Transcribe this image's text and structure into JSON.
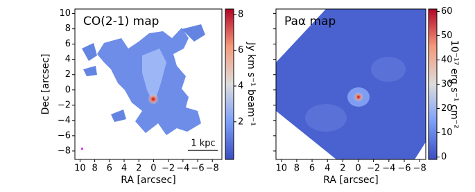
{
  "chart_data": [
    {
      "type": "image",
      "title": "CO(2-1) map",
      "xlabel": "RA [arcsec]",
      "ylabel": "Dec [arcsec]",
      "xlim": [
        10.7,
        -9.3
      ],
      "ylim": [
        -9.1,
        10.6
      ],
      "xticks": [
        10,
        8,
        6,
        4,
        2,
        0,
        {
          "value": -2,
          "label": "−2"
        },
        {
          "value": -4,
          "label": "−4"
        },
        {
          "value": -6,
          "label": "−6"
        },
        {
          "value": -8,
          "label": "−8"
        }
      ],
      "yticks": [
        {
          "value": -8,
          "label": "−8"
        },
        {
          "value": -6,
          "label": "−6"
        },
        {
          "value": -4,
          "label": "−4"
        },
        {
          "value": -2,
          "label": "−2"
        },
        0,
        2,
        4,
        6,
        8,
        10
      ],
      "show_ytick_labels": true,
      "colormap": "coolwarm",
      "colorbar_label": "Jy km s⁻¹ beam⁻¹",
      "clim": [
        -0.1,
        8.3
      ],
      "cticks": [
        2,
        4,
        6,
        8
      ],
      "annotation": "1 kpc"
    },
    {
      "type": "image",
      "title": "Paα map",
      "xlabel": "RA [arcsec]",
      "xlim": [
        10.7,
        -8.8
      ],
      "ylim": [
        -9.1,
        10.6
      ],
      "xticks": [
        10,
        8,
        6,
        4,
        2,
        0,
        {
          "value": -2,
          "label": "−2"
        },
        {
          "value": -4,
          "label": "−4"
        },
        {
          "value": -6,
          "label": "−6"
        },
        {
          "value": -8,
          "label": "−8"
        }
      ],
      "yticks": [
        -8,
        -6,
        -4,
        -2,
        0,
        2,
        4,
        6,
        8,
        10
      ],
      "show_ytick_labels": false,
      "colormap": "coolwarm",
      "colorbar_label": "10⁻¹⁷ erg s⁻¹ cm⁻²",
      "clim": [
        -1,
        61
      ],
      "cticks": [
        0,
        10,
        20,
        30,
        40,
        50,
        60
      ]
    }
  ]
}
